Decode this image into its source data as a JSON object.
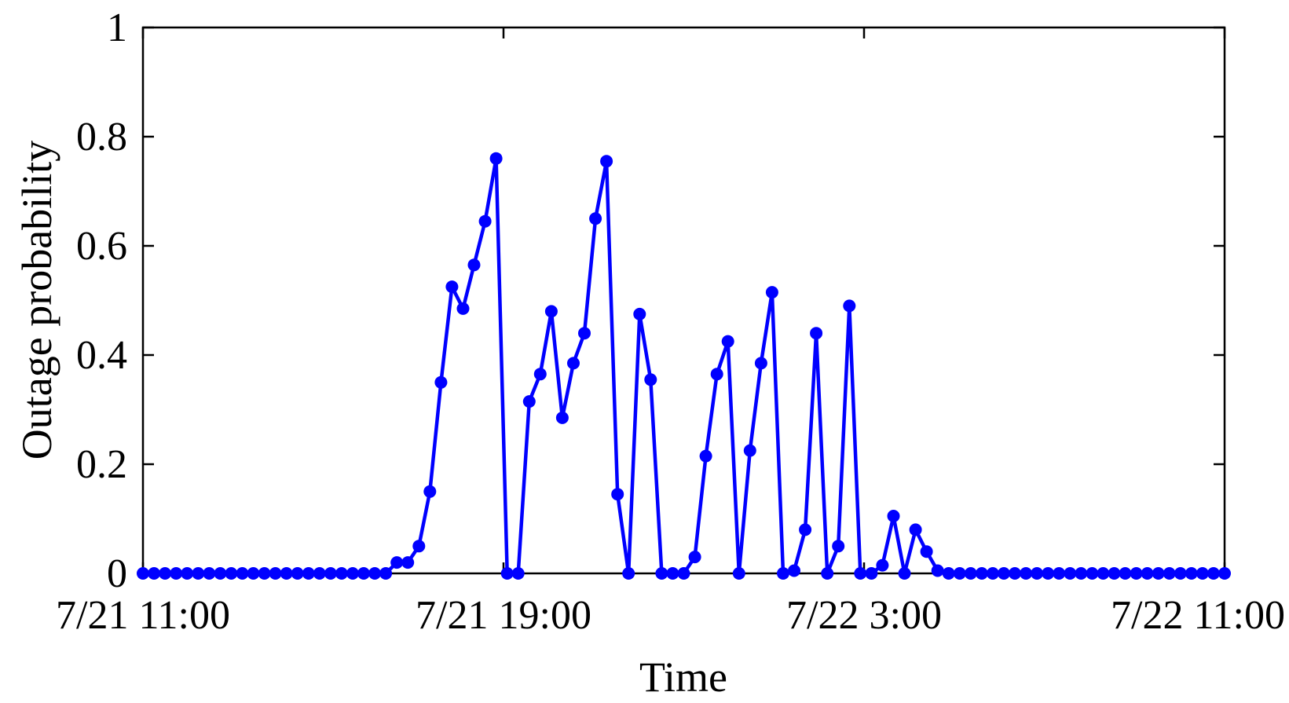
{
  "chart_data": {
    "type": "line",
    "xlabel": "Time",
    "ylabel": "Outage probability",
    "x_unit": "hours from 7/21 11:00",
    "xlim": [
      0,
      24
    ],
    "ylim": [
      0,
      1
    ],
    "x_ticks": [
      {
        "value": 0,
        "label": "7/21 11:00"
      },
      {
        "value": 8,
        "label": "7/21 19:00"
      },
      {
        "value": 16,
        "label": "7/22 3:00"
      },
      {
        "value": 24,
        "label": "7/22 11:00"
      }
    ],
    "y_ticks": [
      {
        "value": 0,
        "label": "0"
      },
      {
        "value": 0.2,
        "label": "0.2"
      },
      {
        "value": 0.4,
        "label": "0.4"
      },
      {
        "value": 0.6,
        "label": "0.6"
      },
      {
        "value": 0.8,
        "label": "0.8"
      },
      {
        "value": 1,
        "label": "1"
      }
    ],
    "grid": false,
    "series": [
      {
        "color": "#0000ff",
        "marker": "circle",
        "values": [
          0,
          0,
          0,
          0,
          0,
          0,
          0,
          0,
          0,
          0,
          0,
          0,
          0,
          0,
          0,
          0,
          0,
          0,
          0,
          0,
          0,
          0,
          0,
          0.02,
          0.02,
          0.05,
          0.15,
          0.35,
          0.525,
          0.485,
          0.565,
          0.645,
          0.76,
          0,
          0,
          0.315,
          0.365,
          0.48,
          0.285,
          0.385,
          0.44,
          0.65,
          0.755,
          0.145,
          0,
          0.475,
          0.355,
          0,
          0,
          0,
          0.03,
          0.215,
          0.365,
          0.425,
          0,
          0.225,
          0.385,
          0.515,
          0,
          0.005,
          0.08,
          0.44,
          0,
          0.05,
          0.49,
          0,
          0,
          0.015,
          0.105,
          0,
          0.08,
          0.04,
          0.005,
          0,
          0,
          0,
          0,
          0,
          0,
          0,
          0,
          0,
          0,
          0,
          0,
          0,
          0,
          0,
          0,
          0,
          0,
          0,
          0,
          0,
          0,
          0,
          0,
          0,
          0
        ]
      }
    ]
  }
}
